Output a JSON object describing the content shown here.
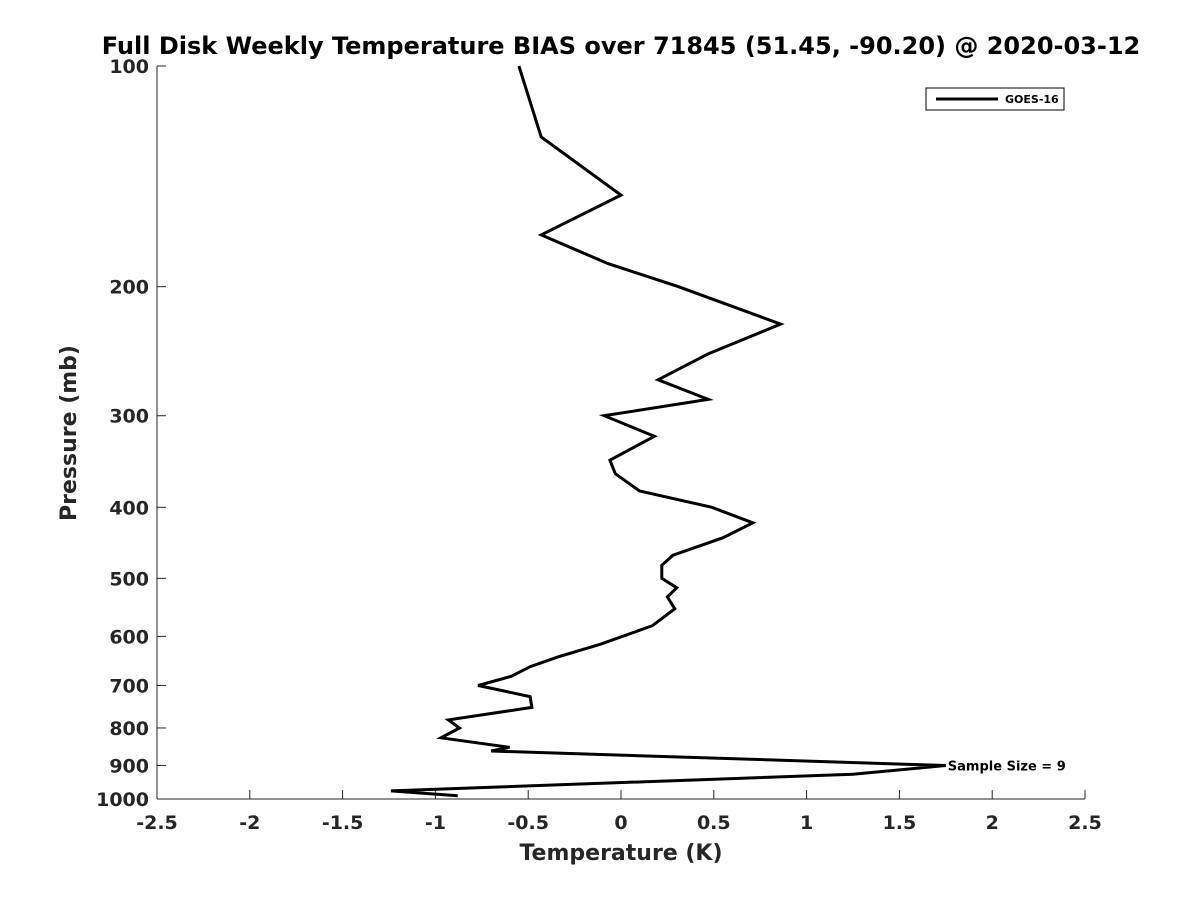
{
  "chart_data": {
    "type": "line",
    "title": "Full Disk Weekly Temperature BIAS over 71845 (51.45, -90.20) @ 2020-03-12",
    "xlabel": "Temperature (K)",
    "ylabel": "Pressure (mb)",
    "xlim": [
      -2.5,
      2.5
    ],
    "ylim": [
      100,
      1000
    ],
    "y_scale": "log",
    "y_reversed": true,
    "x_ticks": [
      -2.5,
      -2,
      -1.5,
      -1,
      -0.5,
      0,
      0.5,
      1,
      1.5,
      2,
      2.5
    ],
    "x_tick_labels": [
      "-2.5",
      "-2",
      "-1.5",
      "-1",
      "-0.5",
      "0",
      "0.5",
      "1",
      "1.5",
      "2",
      "2.5"
    ],
    "y_ticks": [
      100,
      200,
      300,
      400,
      500,
      600,
      700,
      800,
      900,
      1000
    ],
    "y_tick_labels": [
      "100",
      "200",
      "300",
      "400",
      "500",
      "600",
      "700",
      "800",
      "900",
      "1000"
    ],
    "grid": false,
    "legend_position": "top-right",
    "line_color": "#000000",
    "series": [
      {
        "name": "GOES-16",
        "points": [
          {
            "x": -0.55,
            "y": 100
          },
          {
            "x": -0.43,
            "y": 125
          },
          {
            "x": 0.0,
            "y": 150
          },
          {
            "x": -0.43,
            "y": 170
          },
          {
            "x": -0.07,
            "y": 186
          },
          {
            "x": 0.31,
            "y": 200
          },
          {
            "x": 0.86,
            "y": 225
          },
          {
            "x": 0.47,
            "y": 247
          },
          {
            "x": 0.2,
            "y": 268
          },
          {
            "x": 0.47,
            "y": 285
          },
          {
            "x": -0.09,
            "y": 300
          },
          {
            "x": 0.18,
            "y": 320
          },
          {
            "x": -0.06,
            "y": 345
          },
          {
            "x": -0.03,
            "y": 360
          },
          {
            "x": 0.1,
            "y": 380
          },
          {
            "x": 0.49,
            "y": 400
          },
          {
            "x": 0.71,
            "y": 420
          },
          {
            "x": 0.55,
            "y": 440
          },
          {
            "x": 0.28,
            "y": 465
          },
          {
            "x": 0.22,
            "y": 480
          },
          {
            "x": 0.22,
            "y": 500
          },
          {
            "x": 0.3,
            "y": 515
          },
          {
            "x": 0.25,
            "y": 530
          },
          {
            "x": 0.29,
            "y": 550
          },
          {
            "x": 0.17,
            "y": 580
          },
          {
            "x": -0.11,
            "y": 615
          },
          {
            "x": -0.34,
            "y": 640
          },
          {
            "x": -0.49,
            "y": 660
          },
          {
            "x": -0.59,
            "y": 680
          },
          {
            "x": -0.77,
            "y": 700
          },
          {
            "x": -0.49,
            "y": 725
          },
          {
            "x": -0.48,
            "y": 750
          },
          {
            "x": -0.93,
            "y": 780
          },
          {
            "x": -0.87,
            "y": 800
          },
          {
            "x": -0.97,
            "y": 825
          },
          {
            "x": -0.6,
            "y": 850
          },
          {
            "x": -0.7,
            "y": 860
          },
          {
            "x": 1.75,
            "y": 900
          },
          {
            "x": 1.25,
            "y": 925
          },
          {
            "x": -1.24,
            "y": 975
          },
          {
            "x": -0.88,
            "y": 990
          }
        ]
      }
    ],
    "annotations": [
      {
        "text": "Sample Size = 9",
        "x": 1.75,
        "y": 900
      }
    ]
  }
}
